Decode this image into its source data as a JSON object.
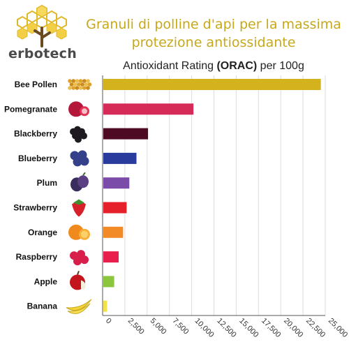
{
  "brand": {
    "name": "erbotech"
  },
  "headline": {
    "line1": "Granuli di polline d'api per la massima",
    "line2": "protezione antiossidante"
  },
  "chart_data": {
    "type": "bar",
    "orientation": "horizontal",
    "title_prefix": "Antioxidant Rating ",
    "title_bold": "(ORAC)",
    "title_suffix": " per 100g",
    "categories": [
      "Bee Pollen",
      "Pomegranate",
      "Blackberry",
      "Blueberry",
      "Plum",
      "Strawberry",
      "Orange",
      "Raspberry",
      "Apple",
      "Banana"
    ],
    "values": [
      24500,
      10200,
      5100,
      3800,
      3000,
      2700,
      2300,
      1800,
      1300,
      500
    ],
    "colors": [
      "#d4b21e",
      "#d62a58",
      "#4d0a22",
      "#2a3b9e",
      "#7a4ba8",
      "#e5202a",
      "#f28a26",
      "#e81e4c",
      "#8cc63e",
      "#f3e24a"
    ],
    "xlim": [
      0,
      25000
    ],
    "x_ticks": [
      "0",
      "2,500",
      "5,000",
      "7,500",
      "10,000",
      "12,500",
      "15,000",
      "17,500",
      "20,000",
      "22,500",
      "25,000"
    ],
    "x_tick_values": [
      0,
      2500,
      5000,
      7500,
      10000,
      12500,
      15000,
      17500,
      20000,
      22500,
      25000
    ],
    "grid": true,
    "icons": [
      "bee-pollen-icon",
      "pomegranate-icon",
      "blackberry-icon",
      "blueberry-icon",
      "plum-icon",
      "strawberry-icon",
      "orange-icon",
      "raspberry-icon",
      "apple-icon",
      "banana-icon"
    ]
  }
}
